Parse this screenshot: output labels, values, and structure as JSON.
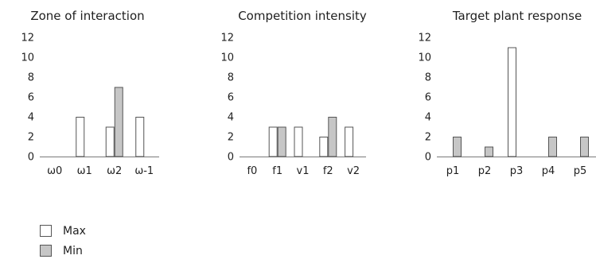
{
  "colors": {
    "max": "#ffffff",
    "min": "#c6c6c6",
    "outline": "#555555",
    "axis": "#7a7a7a"
  },
  "legend": [
    {
      "name": "Max",
      "color": "#ffffff"
    },
    {
      "name": "Min",
      "color": "#c6c6c6"
    }
  ],
  "chart_data": [
    {
      "type": "bar",
      "title": "Zone of interaction",
      "categories": [
        "ω0",
        "ω1",
        "ω2",
        "ω-1"
      ],
      "series": [
        {
          "name": "Max",
          "values": [
            0,
            4,
            3,
            4
          ]
        },
        {
          "name": "Min",
          "values": [
            0,
            0,
            7,
            0
          ]
        }
      ],
      "yticks": [
        0,
        2,
        4,
        6,
        8,
        10,
        12
      ],
      "ylim": [
        0,
        12
      ],
      "grid": false
    },
    {
      "type": "bar",
      "title": "Competition intensity",
      "categories": [
        "f0",
        "f1",
        "v1",
        "f2",
        "v2"
      ],
      "series": [
        {
          "name": "Max",
          "values": [
            0,
            3,
            3,
            2,
            3
          ]
        },
        {
          "name": "Min",
          "values": [
            0,
            3,
            0,
            4,
            0
          ]
        }
      ],
      "yticks": [
        0,
        2,
        4,
        6,
        8,
        10,
        12
      ],
      "ylim": [
        0,
        12
      ],
      "grid": false
    },
    {
      "type": "bar",
      "title": "Target plant response",
      "categories": [
        "p1",
        "p2",
        "p3",
        "p4",
        "p5"
      ],
      "series": [
        {
          "name": "Max",
          "values": [
            0,
            0,
            11,
            0,
            0
          ]
        },
        {
          "name": "Min",
          "values": [
            2,
            1,
            0,
            2,
            2
          ]
        }
      ],
      "yticks": [
        0,
        2,
        4,
        6,
        8,
        10,
        12
      ],
      "ylim": [
        0,
        12
      ],
      "grid": false
    }
  ]
}
